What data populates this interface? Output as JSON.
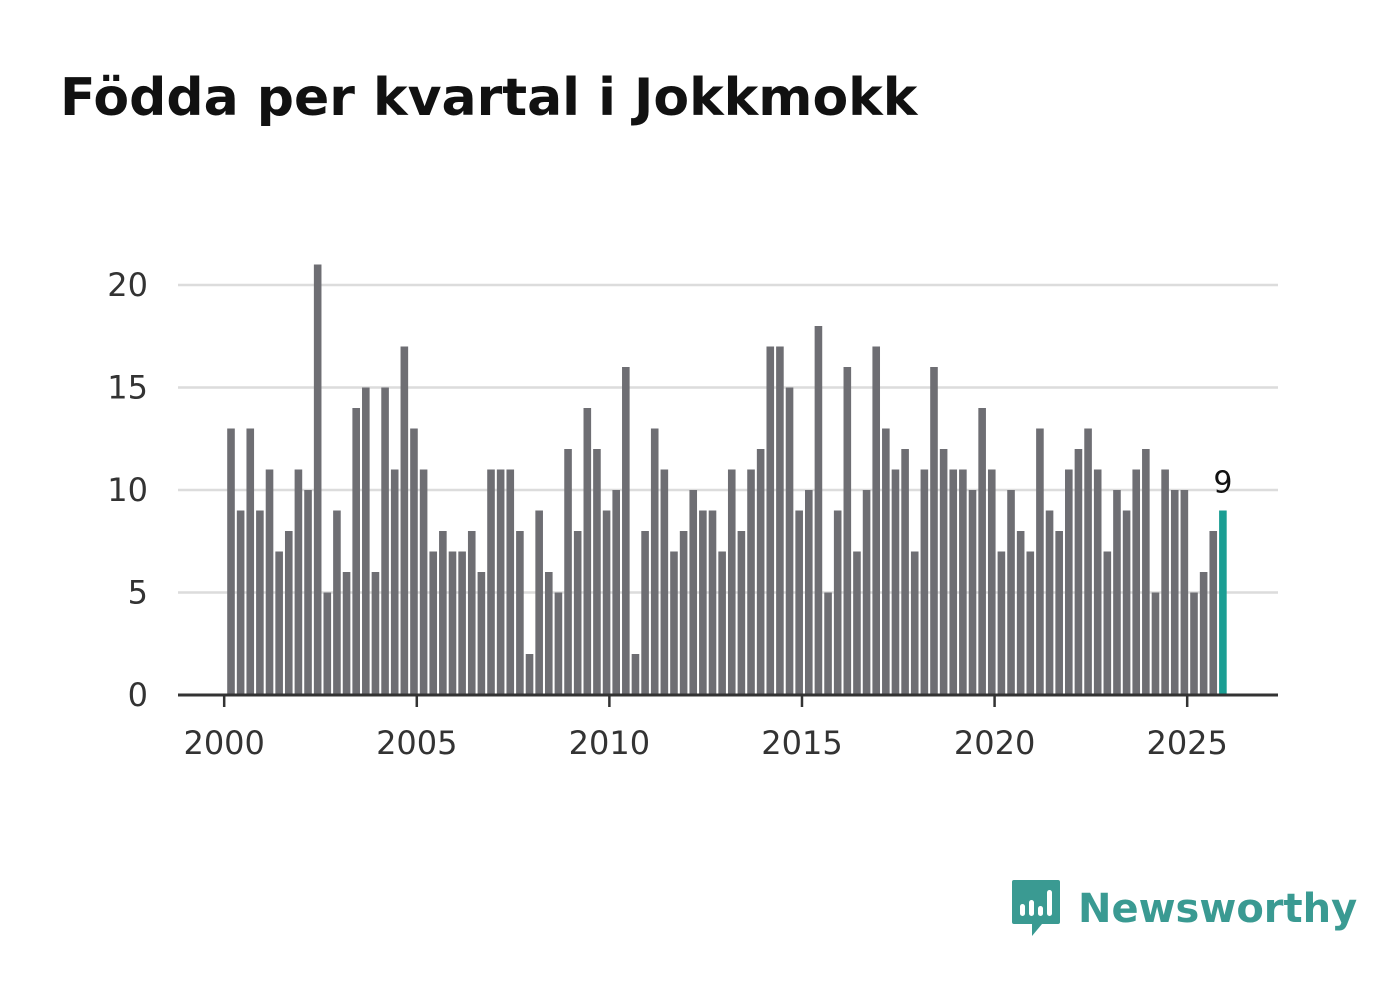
{
  "chart_data": {
    "type": "bar",
    "title": "Födda per kvartal i Jokkmokk",
    "xlabel": "",
    "ylabel": "",
    "ylim": [
      0,
      21
    ],
    "yticks": [
      0,
      5,
      10,
      15,
      20
    ],
    "xticks": [
      2000,
      2005,
      2010,
      2015,
      2020,
      2025
    ],
    "x_start": 2000,
    "x_step": 0.25,
    "grid": true,
    "values": [
      13,
      9,
      13,
      9,
      11,
      7,
      8,
      11,
      10,
      21,
      5,
      9,
      6,
      14,
      15,
      6,
      15,
      11,
      17,
      13,
      11,
      7,
      8,
      7,
      7,
      8,
      6,
      11,
      11,
      11,
      8,
      2,
      9,
      6,
      5,
      12,
      8,
      14,
      12,
      9,
      10,
      16,
      2,
      8,
      13,
      11,
      7,
      8,
      10,
      9,
      9,
      7,
      11,
      8,
      11,
      12,
      17,
      17,
      15,
      9,
      10,
      18,
      5,
      9,
      16,
      7,
      10,
      17,
      13,
      11,
      12,
      7,
      11,
      16,
      12,
      11,
      11,
      10,
      14,
      11,
      7,
      10,
      8,
      7,
      13,
      9,
      8,
      11,
      12,
      13,
      11,
      7,
      10,
      9,
      11,
      12,
      5,
      11,
      10,
      10,
      5,
      6,
      8,
      9
    ],
    "highlight_index": 103,
    "highlight_label": "9",
    "colors": {
      "bar": "#6e6e73",
      "highlight": "#1a9e93",
      "grid": "#dcdcdc",
      "axis": "#333333",
      "text": "#333333"
    }
  },
  "brand": {
    "name": "Newsworthy",
    "icon": "newsworthy-logo-icon",
    "color": "#3a9a92"
  }
}
